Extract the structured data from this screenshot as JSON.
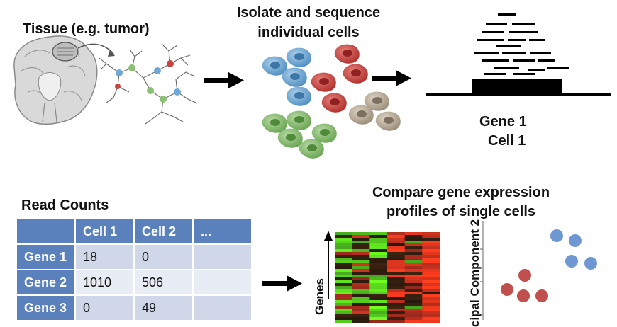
{
  "titles": {
    "tissue": "Tissue (e.g. tumor)",
    "isolate_line1": "Isolate and sequence",
    "isolate_line2": "individual cells",
    "gene_label": "Gene 1",
    "cell_label": "Cell 1",
    "read_counts": "Read Counts",
    "compare_line1": "Compare gene expression",
    "compare_line2": "profiles of single cells"
  },
  "table": {
    "headers": [
      "",
      "Cell 1",
      "Cell 2",
      "..."
    ],
    "rows": [
      {
        "label": "Gene 1",
        "cells": [
          "18",
          "0",
          ""
        ]
      },
      {
        "label": "Gene 2",
        "cells": [
          "1010",
          "506",
          ""
        ]
      },
      {
        "label": "Gene 3",
        "cells": [
          "0",
          "49",
          ""
        ]
      }
    ]
  },
  "heatmap": {
    "axis_label": "Genes"
  },
  "scatter": {
    "axis_label": "cipal Component 2",
    "clusters": [
      {
        "color": "#c0504d",
        "name": "red-cluster"
      },
      {
        "color": "#6f97d2",
        "name": "blue-cluster"
      }
    ]
  },
  "colors": {
    "blue_cell": "#6fa8d6",
    "red_cell": "#c74440",
    "green_cell": "#8bbf73",
    "tan_cell": "#b9ab98",
    "table_header": "#5b81bd",
    "table_row_a": "#cfd7e8",
    "table_row_b": "#e8ecf4"
  }
}
